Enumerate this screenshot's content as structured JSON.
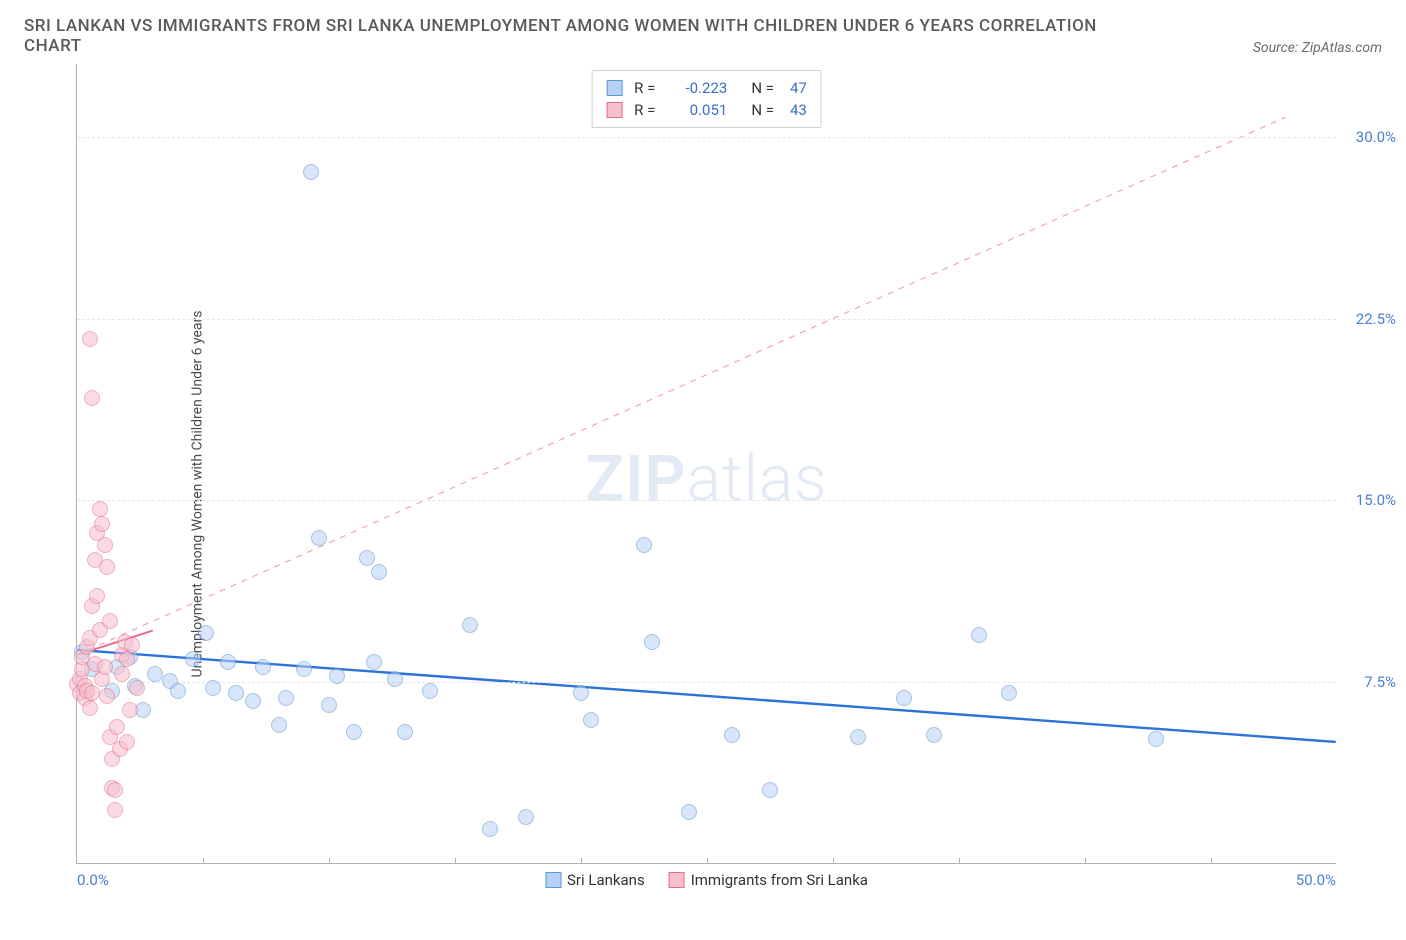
{
  "header": {
    "title": "SRI LANKAN VS IMMIGRANTS FROM SRI LANKA UNEMPLOYMENT AMONG WOMEN WITH CHILDREN UNDER 6 YEARS CORRELATION CHART",
    "source": "Source: ZipAtlas.com"
  },
  "chart": {
    "type": "scatter",
    "ylabel": "Unemployment Among Women with Children Under 6 years",
    "background_color": "#ffffff",
    "grid_color": "#e5e5e5",
    "axis_color": "#b0b0b0",
    "tick_color": "#4a7fd6",
    "xlim": [
      0,
      50
    ],
    "ylim": [
      0,
      33
    ],
    "xtick_positions": [
      5,
      10,
      15,
      20,
      25,
      30,
      35,
      40,
      45
    ],
    "x_min_label": "0.0%",
    "x_max_label": "50.0%",
    "yticks": [
      {
        "v": 7.5,
        "label": "7.5%"
      },
      {
        "v": 15.0,
        "label": "15.0%"
      },
      {
        "v": 22.5,
        "label": "22.5%"
      },
      {
        "v": 30.0,
        "label": "30.0%"
      }
    ],
    "watermark": {
      "bold": "ZIP",
      "light": "atlas"
    },
    "series": [
      {
        "key": "sri_lankans",
        "label": "Sri Lankans",
        "fill": "#b7d2f3",
        "stroke": "#5e95d8",
        "fill_opacity": 0.55,
        "r_value": "-0.223",
        "n_value": "47",
        "trend": {
          "x1": 0,
          "y1": 8.8,
          "x2": 50,
          "y2": 5.0,
          "color": "#2d72d9",
          "dashed": false,
          "width": 2.4
        },
        "points": [
          {
            "x": 0.2,
            "y": 8.7
          },
          {
            "x": 0.6,
            "y": 8.0
          },
          {
            "x": 1.4,
            "y": 7.1
          },
          {
            "x": 1.6,
            "y": 8.1
          },
          {
            "x": 2.1,
            "y": 8.5
          },
          {
            "x": 2.3,
            "y": 7.3
          },
          {
            "x": 2.6,
            "y": 6.3
          },
          {
            "x": 3.1,
            "y": 7.8
          },
          {
            "x": 3.7,
            "y": 7.5
          },
          {
            "x": 4.0,
            "y": 7.1
          },
          {
            "x": 4.6,
            "y": 8.4
          },
          {
            "x": 5.1,
            "y": 9.5
          },
          {
            "x": 5.4,
            "y": 7.2
          },
          {
            "x": 6.0,
            "y": 8.3
          },
          {
            "x": 6.3,
            "y": 7.0
          },
          {
            "x": 7.0,
            "y": 6.7
          },
          {
            "x": 7.4,
            "y": 8.1
          },
          {
            "x": 8.0,
            "y": 5.7
          },
          {
            "x": 8.3,
            "y": 6.8
          },
          {
            "x": 9.0,
            "y": 8.0
          },
          {
            "x": 9.3,
            "y": 28.5
          },
          {
            "x": 9.6,
            "y": 13.4
          },
          {
            "x": 10.3,
            "y": 7.7
          },
          {
            "x": 10.0,
            "y": 6.5
          },
          {
            "x": 11.0,
            "y": 5.4
          },
          {
            "x": 11.5,
            "y": 12.6
          },
          {
            "x": 11.8,
            "y": 8.3
          },
          {
            "x": 12.0,
            "y": 12.0
          },
          {
            "x": 12.6,
            "y": 7.6
          },
          {
            "x": 13.0,
            "y": 5.4
          },
          {
            "x": 14.0,
            "y": 7.1
          },
          {
            "x": 15.6,
            "y": 9.8
          },
          {
            "x": 16.4,
            "y": 1.4
          },
          {
            "x": 17.8,
            "y": 1.9
          },
          {
            "x": 20.4,
            "y": 5.9
          },
          {
            "x": 22.5,
            "y": 13.1
          },
          {
            "x": 22.8,
            "y": 9.1
          },
          {
            "x": 24.3,
            "y": 2.1
          },
          {
            "x": 26.0,
            "y": 5.3
          },
          {
            "x": 31.0,
            "y": 5.2
          },
          {
            "x": 32.8,
            "y": 6.8
          },
          {
            "x": 34.0,
            "y": 5.3
          },
          {
            "x": 35.8,
            "y": 9.4
          },
          {
            "x": 37.0,
            "y": 7.0
          },
          {
            "x": 42.8,
            "y": 5.1
          },
          {
            "x": 27.5,
            "y": 3.0
          },
          {
            "x": 20.0,
            "y": 7.0
          }
        ]
      },
      {
        "key": "immigrants",
        "label": "Immigrants from Sri Lanka",
        "fill": "#f6bfce",
        "stroke": "#e56e8e",
        "fill_opacity": 0.55,
        "r_value": "0.051",
        "n_value": "43",
        "trend": {
          "x1": 0,
          "y1": 8.6,
          "x2": 3,
          "y2": 9.6,
          "color": "#e56e8e",
          "dashed": false,
          "width": 2
        },
        "ref_line": {
          "x1": 0,
          "y1": 8.6,
          "x2": 48,
          "y2": 30.8,
          "color": "#f0a5b7",
          "dashed": true,
          "width": 1.2
        },
        "points": [
          {
            "x": 0.0,
            "y": 7.4
          },
          {
            "x": 0.1,
            "y": 7.0
          },
          {
            "x": 0.1,
            "y": 7.6
          },
          {
            "x": 0.2,
            "y": 8.0
          },
          {
            "x": 0.2,
            "y": 8.5
          },
          {
            "x": 0.3,
            "y": 6.8
          },
          {
            "x": 0.3,
            "y": 7.3
          },
          {
            "x": 0.4,
            "y": 8.9
          },
          {
            "x": 0.4,
            "y": 7.1
          },
          {
            "x": 0.5,
            "y": 9.3
          },
          {
            "x": 0.5,
            "y": 21.6
          },
          {
            "x": 0.5,
            "y": 6.4
          },
          {
            "x": 0.6,
            "y": 19.2
          },
          {
            "x": 0.6,
            "y": 10.6
          },
          {
            "x": 0.6,
            "y": 7.0
          },
          {
            "x": 0.7,
            "y": 12.5
          },
          {
            "x": 0.7,
            "y": 8.2
          },
          {
            "x": 0.8,
            "y": 13.6
          },
          {
            "x": 0.8,
            "y": 11.0
          },
          {
            "x": 0.9,
            "y": 9.6
          },
          {
            "x": 0.9,
            "y": 14.6
          },
          {
            "x": 1.0,
            "y": 14.0
          },
          {
            "x": 1.0,
            "y": 7.6
          },
          {
            "x": 1.1,
            "y": 13.1
          },
          {
            "x": 1.1,
            "y": 8.1
          },
          {
            "x": 1.2,
            "y": 6.9
          },
          {
            "x": 1.2,
            "y": 12.2
          },
          {
            "x": 1.3,
            "y": 10.0
          },
          {
            "x": 1.3,
            "y": 5.2
          },
          {
            "x": 1.4,
            "y": 4.3
          },
          {
            "x": 1.4,
            "y": 3.1
          },
          {
            "x": 1.5,
            "y": 3.0
          },
          {
            "x": 1.5,
            "y": 2.2
          },
          {
            "x": 1.6,
            "y": 5.6
          },
          {
            "x": 1.7,
            "y": 4.7
          },
          {
            "x": 1.8,
            "y": 7.8
          },
          {
            "x": 1.8,
            "y": 8.6
          },
          {
            "x": 1.9,
            "y": 9.1
          },
          {
            "x": 2.0,
            "y": 5.0
          },
          {
            "x": 2.0,
            "y": 8.4
          },
          {
            "x": 2.1,
            "y": 6.3
          },
          {
            "x": 2.2,
            "y": 9.0
          },
          {
            "x": 2.4,
            "y": 7.2
          }
        ]
      }
    ],
    "legend_top": {
      "r_label": "R =",
      "n_label": "N ="
    },
    "legend_bottom_labels": {
      "s0": "Sri Lankans",
      "s1": "Immigrants from Sri Lanka"
    }
  }
}
